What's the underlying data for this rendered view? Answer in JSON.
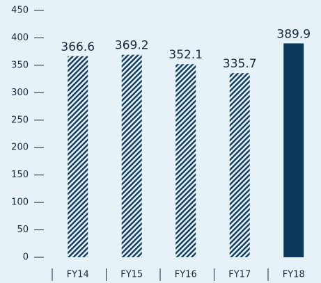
{
  "chart_data": {
    "type": "bar",
    "categories": [
      "FY14",
      "FY15",
      "FY16",
      "FY17",
      "FY18"
    ],
    "values": [
      366.6,
      369.2,
      352.1,
      335.7,
      389.9
    ],
    "colors": [
      "#0d3a5c",
      "#0d3a5c",
      "#0d3a5c",
      "#0d3a5c",
      "#0d3a5c"
    ],
    "patterns": [
      "hatch",
      "hatch",
      "hatch",
      "hatch",
      "solid"
    ],
    "ylim": [
      0,
      450
    ],
    "yticks": [
      0,
      50,
      100,
      150,
      200,
      250,
      300,
      350,
      400,
      450
    ]
  }
}
